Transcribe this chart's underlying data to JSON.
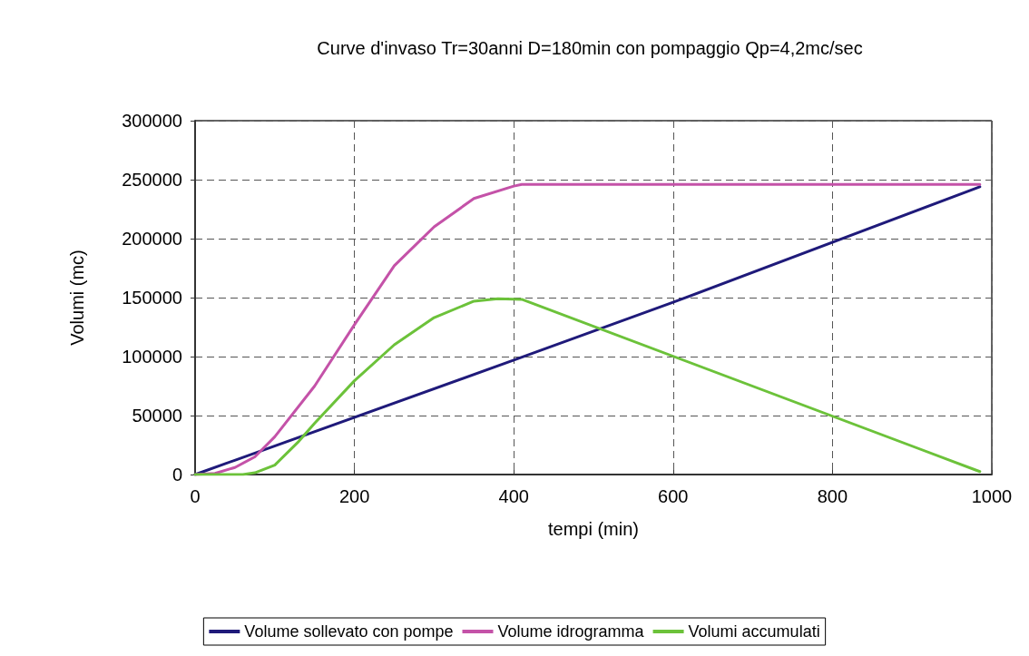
{
  "chart_data": {
    "type": "line",
    "title": "Curve d'invaso Tr=30anni D=180min con pompaggio Qp=4,2mc/sec",
    "xlabel": "tempi (min)",
    "ylabel": "Volumi (mc)",
    "series": [
      {
        "name": "Volume sollevato con pompe",
        "color": "#1f1a7a",
        "x": [
          0,
          400,
          600,
          985
        ],
        "values": [
          0,
          97000,
          146000,
          244000
        ]
      },
      {
        "name": "Volume idrogramma",
        "color": "#c452a8",
        "x": [
          0,
          25,
          50,
          75,
          100,
          150,
          200,
          250,
          300,
          350,
          400,
          410,
          985
        ],
        "values": [
          0,
          1000,
          6000,
          15000,
          32000,
          75000,
          127000,
          177000,
          210000,
          234000,
          244500,
          246000,
          246000
        ]
      },
      {
        "name": "Volumi accumulati",
        "color": "#6cc23a",
        "x": [
          0,
          60,
          75,
          100,
          130,
          150,
          200,
          250,
          300,
          350,
          380,
          410,
          985
        ],
        "values": [
          0,
          0,
          1500,
          8000,
          28000,
          43500,
          79500,
          110000,
          133000,
          147000,
          149000,
          148500,
          2500
        ]
      }
    ],
    "xlim": [
      0,
      1000
    ],
    "xticks": [
      0,
      200,
      400,
      600,
      800,
      1000
    ],
    "ylim": [
      0,
      300000
    ],
    "yticks": [
      0,
      50000,
      100000,
      150000,
      200000,
      250000,
      300000
    ],
    "grid": true,
    "legend": "bottom",
    "marker": "none",
    "line_style": "solid"
  }
}
